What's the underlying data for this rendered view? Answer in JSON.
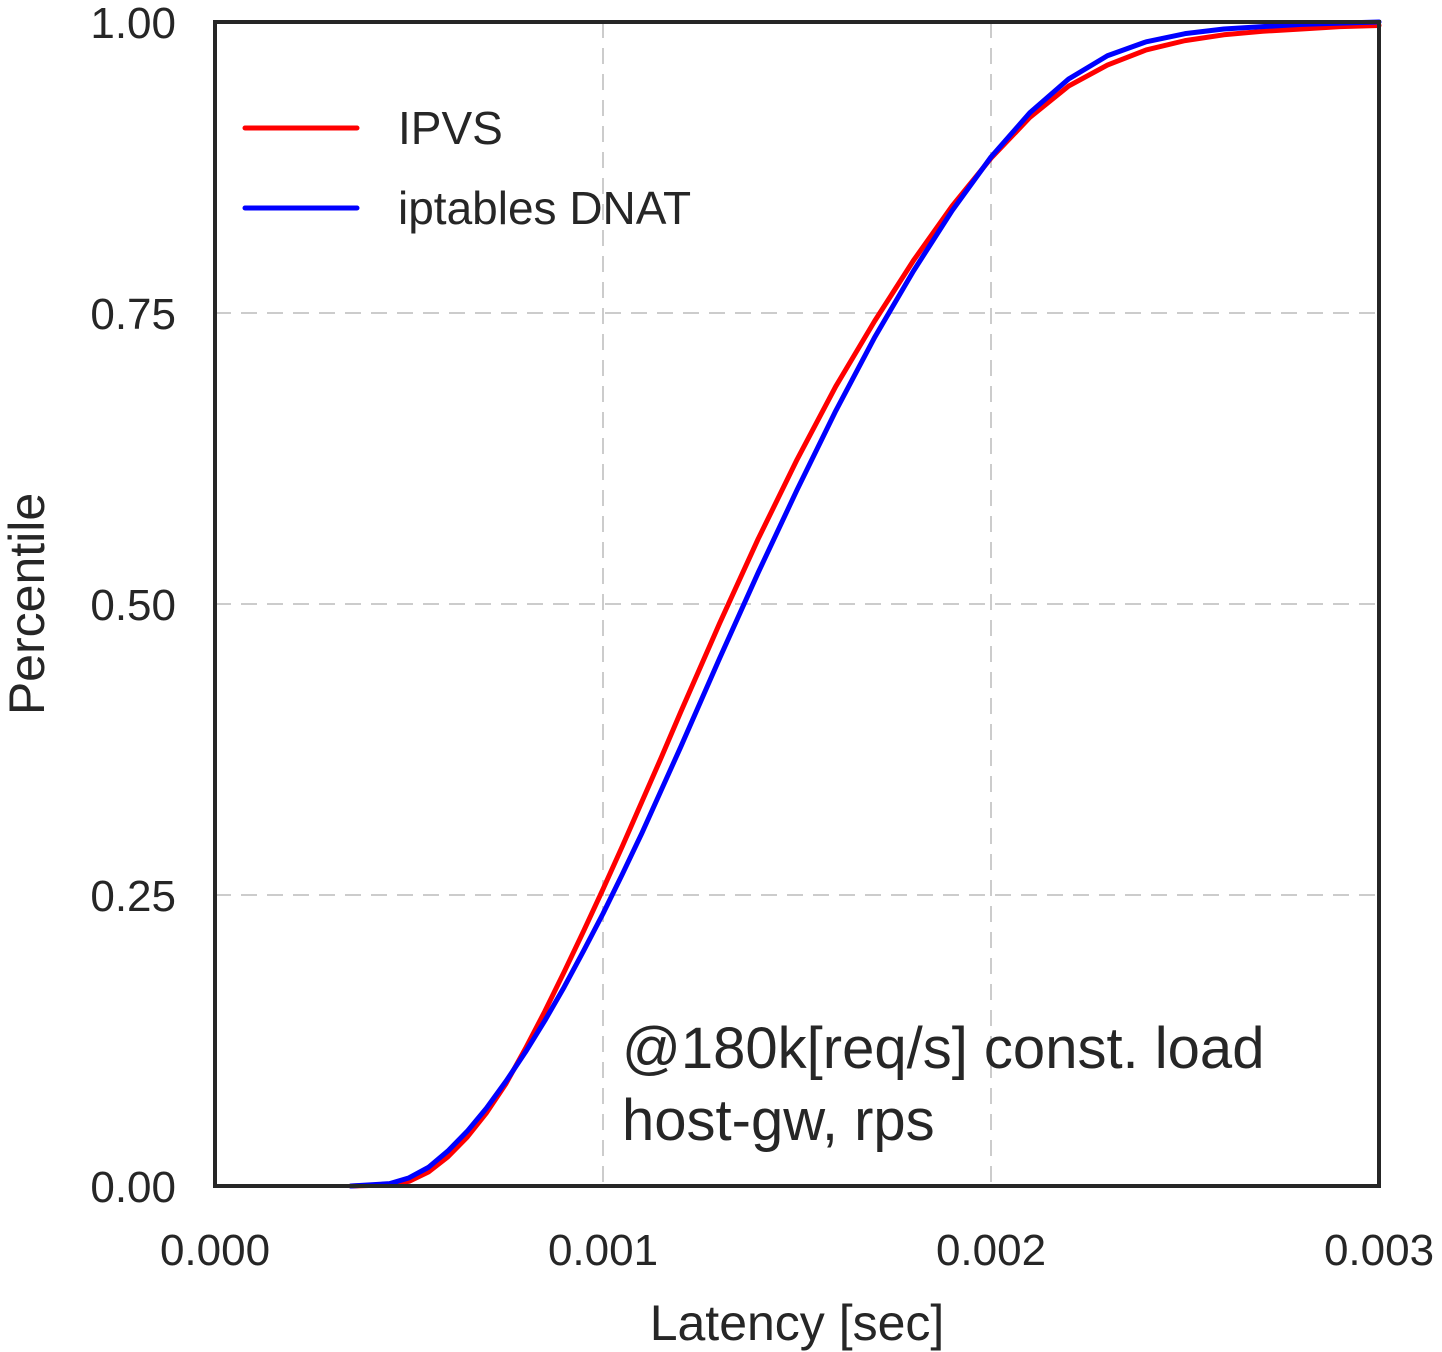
{
  "chart_data": {
    "type": "line",
    "title": "",
    "xlabel": "Latency [sec]",
    "ylabel": "Percentile",
    "xlim": [
      0.0,
      0.003
    ],
    "ylim": [
      0.0,
      1.0
    ],
    "xticks": [
      "0.000",
      "0.001",
      "0.002",
      "0.003"
    ],
    "yticks": [
      "0.00",
      "0.25",
      "0.50",
      "0.75",
      "1.00"
    ],
    "grid": true,
    "legend_position": "top-left",
    "annotation": [
      "@180k[req/s] const. load",
      "host-gw, rps"
    ],
    "series": [
      {
        "name": "IPVS",
        "color": "#ff0000",
        "x": [
          0.00035,
          0.00045,
          0.0005,
          0.00055,
          0.0006,
          0.00065,
          0.0007,
          0.00075,
          0.0008,
          0.00085,
          0.0009,
          0.00095,
          0.001,
          0.00105,
          0.0011,
          0.00115,
          0.0012,
          0.0013,
          0.0014,
          0.0015,
          0.0016,
          0.0017,
          0.0018,
          0.0019,
          0.002,
          0.0021,
          0.0022,
          0.0023,
          0.0024,
          0.0025,
          0.0026,
          0.0027,
          0.0028,
          0.0029,
          0.003
        ],
        "y": [
          0.0,
          0.001,
          0.004,
          0.012,
          0.025,
          0.042,
          0.063,
          0.088,
          0.118,
          0.15,
          0.184,
          0.219,
          0.255,
          0.292,
          0.33,
          0.368,
          0.407,
          0.483,
          0.556,
          0.624,
          0.687,
          0.743,
          0.795,
          0.842,
          0.883,
          0.918,
          0.945,
          0.963,
          0.976,
          0.984,
          0.989,
          0.992,
          0.994,
          0.996,
          0.997
        ]
      },
      {
        "name": "iptables DNAT",
        "color": "#0000ff",
        "x": [
          0.00035,
          0.00045,
          0.0005,
          0.00055,
          0.0006,
          0.00065,
          0.0007,
          0.00075,
          0.0008,
          0.00085,
          0.0009,
          0.00095,
          0.001,
          0.00105,
          0.0011,
          0.00115,
          0.0012,
          0.0013,
          0.0014,
          0.0015,
          0.0016,
          0.0017,
          0.0018,
          0.0019,
          0.002,
          0.0021,
          0.0022,
          0.0023,
          0.0024,
          0.0025,
          0.0026,
          0.0027,
          0.0028,
          0.0029,
          0.003
        ],
        "y": [
          0.0,
          0.002,
          0.007,
          0.016,
          0.03,
          0.047,
          0.067,
          0.09,
          0.115,
          0.142,
          0.171,
          0.202,
          0.234,
          0.268,
          0.303,
          0.34,
          0.377,
          0.453,
          0.527,
          0.598,
          0.666,
          0.729,
          0.786,
          0.838,
          0.884,
          0.922,
          0.951,
          0.971,
          0.983,
          0.99,
          0.994,
          0.996,
          0.998,
          0.999,
          1.0
        ]
      }
    ]
  }
}
